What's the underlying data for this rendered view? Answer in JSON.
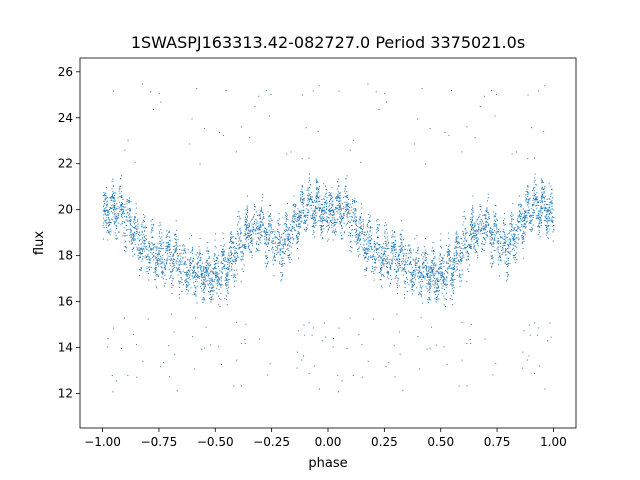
{
  "chart_data": {
    "type": "scatter",
    "title": "1SWASPJ163313.42-082727.0 Period 3375021.0s",
    "xlabel": "phase",
    "ylabel": "flux",
    "xlim": [
      -1.1,
      1.1
    ],
    "ylim": [
      10.5,
      26.6
    ],
    "x_ticks": [
      -1.0,
      -0.75,
      -0.5,
      -0.25,
      0.0,
      0.25,
      0.5,
      0.75,
      1.0
    ],
    "x_tick_labels": [
      "−1.00",
      "−0.75",
      "−0.50",
      "−0.25",
      "0.00",
      "0.25",
      "0.50",
      "0.75",
      "1.00"
    ],
    "y_ticks": [
      12,
      14,
      16,
      18,
      20,
      22,
      24,
      26
    ],
    "y_tick_labels": [
      "12",
      "14",
      "16",
      "18",
      "20",
      "22",
      "24",
      "26"
    ],
    "grid": false,
    "point_color": "#1f77b4",
    "profile": {
      "description_phase": [
        0.0,
        0.05,
        0.1,
        0.15,
        0.2,
        0.25,
        0.3,
        0.35,
        0.4,
        0.45,
        0.5,
        0.55,
        0.6,
        0.65,
        0.7,
        0.75,
        0.8,
        0.85,
        0.9,
        0.95,
        1.0
      ],
      "median_flux": [
        19.6,
        20.1,
        19.7,
        18.8,
        18.3,
        18.0,
        17.9,
        17.7,
        17.4,
        17.2,
        17.1,
        17.6,
        18.4,
        19.0,
        19.3,
        18.7,
        18.4,
        19.4,
        20.2,
        20.3,
        19.6
      ],
      "spread": 0.9,
      "outlier_low_range": [
        12.0,
        15.5
      ],
      "outlier_high_range": [
        22.0,
        25.5
      ]
    }
  }
}
